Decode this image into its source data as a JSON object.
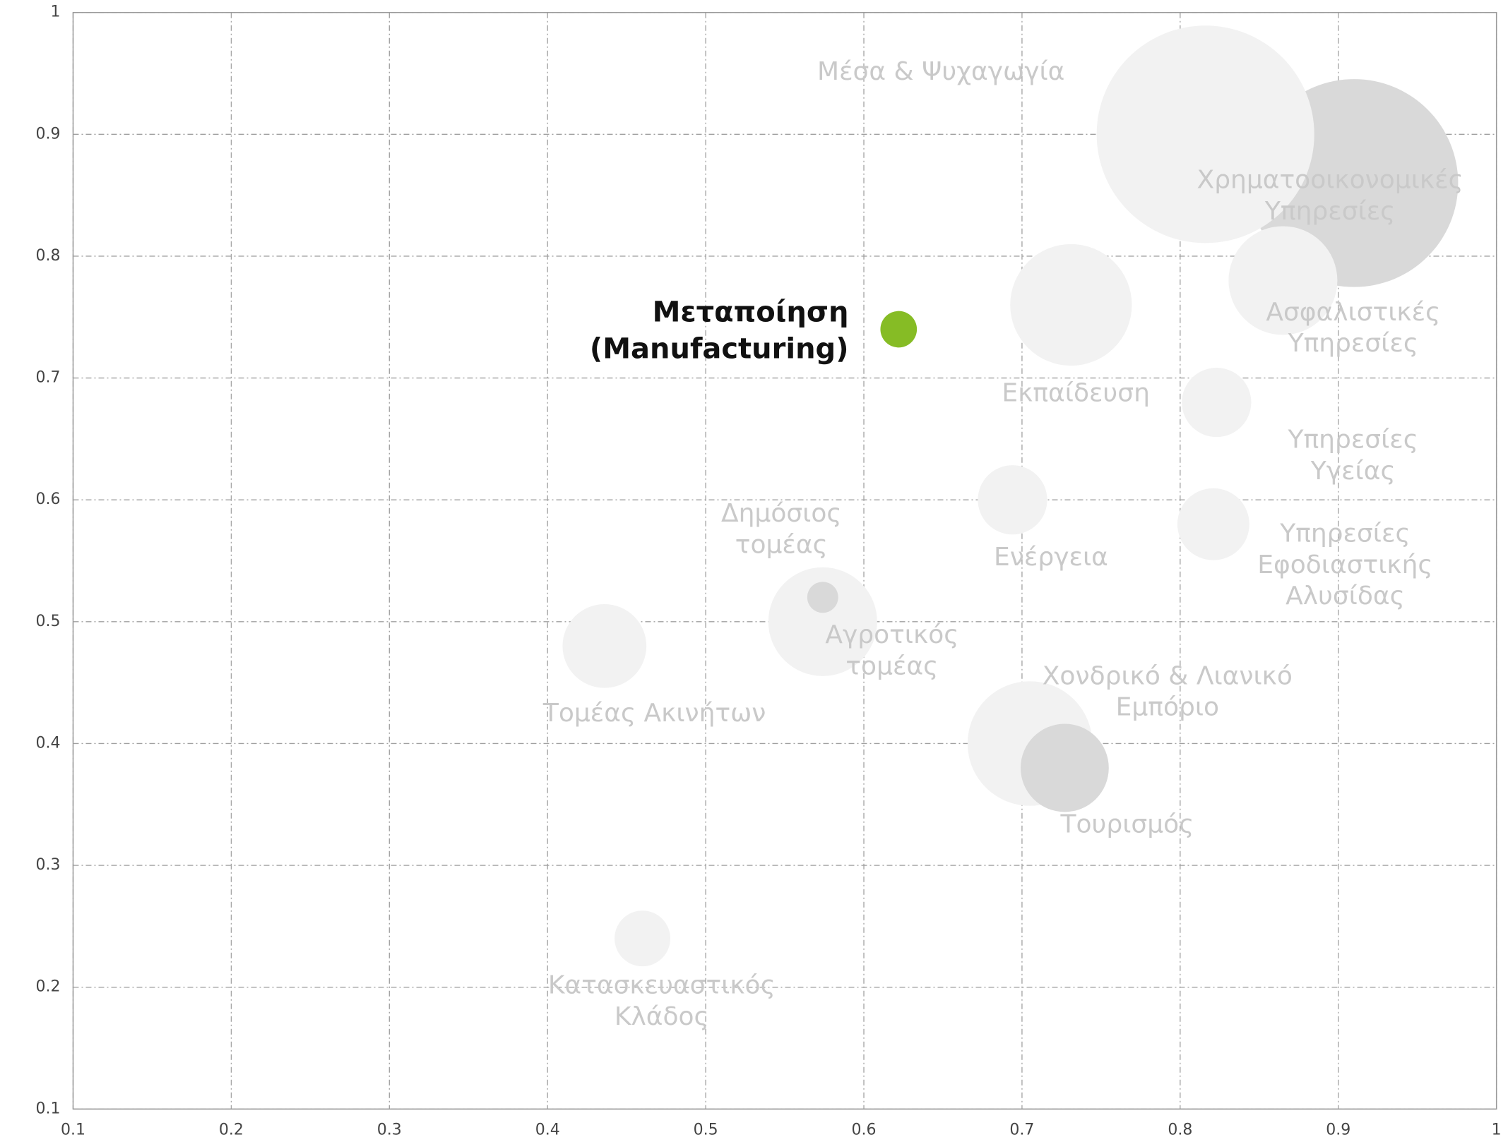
{
  "chart_data": {
    "type": "scatter",
    "xlim": [
      0.1,
      1
    ],
    "ylim": [
      0.1,
      1
    ],
    "xticks": [
      0.1,
      0.2,
      0.3,
      0.4,
      0.5,
      0.6,
      0.7,
      0.8,
      0.9,
      1
    ],
    "yticks": [
      0.1,
      0.2,
      0.3,
      0.4,
      0.5,
      0.6,
      0.7,
      0.8,
      0.9,
      1
    ],
    "grid": true,
    "points": [
      {
        "label": [
          "Χρηματοοικονομικές",
          "Υπηρεσίες"
        ],
        "x": 0.91,
        "y": 0.86,
        "size": 117,
        "color": "#d9d9d9"
      },
      {
        "label": [
          "Μέσα & Ψυχαγωγία"
        ],
        "x": 0.816,
        "y": 0.9,
        "size": 128,
        "color": "#f2f2f2"
      },
      {
        "label": [
          "Ασφαλιστικές",
          "Υπηρεσίες"
        ],
        "x": 0.865,
        "y": 0.78,
        "size": 32,
        "color": "#f2f2f2"
      },
      {
        "label": [
          "Εκπαίδευση"
        ],
        "x": 0.731,
        "y": 0.76,
        "size": 40,
        "color": "#f2f2f2"
      },
      {
        "label": [
          "Μεταποίηση",
          "(Manufacturing)"
        ],
        "x": 0.622,
        "y": 0.74,
        "size": 3.6,
        "color": "#86bc25"
      },
      {
        "label": [
          "Υπηρεσίες",
          "Υγείας"
        ],
        "x": 0.823,
        "y": 0.68,
        "size": 13,
        "color": "#f2f2f2"
      },
      {
        "label": [
          "Ενέργεια"
        ],
        "x": 0.694,
        "y": 0.6,
        "size": 13,
        "color": "#f2f2f2"
      },
      {
        "label": [
          "Υπηρεσίες",
          "Εφοδιαστικής",
          "Αλυσίδας"
        ],
        "x": 0.821,
        "y": 0.58,
        "size": 14,
        "color": "#f2f2f2"
      },
      {
        "label": [
          "Αγροτικός",
          "τομέας"
        ],
        "x": 0.574,
        "y": 0.5,
        "size": 32,
        "color": "#f2f2f2"
      },
      {
        "label": [
          "Δημόσιος",
          "τομέας"
        ],
        "x": 0.574,
        "y": 0.52,
        "size": 2.6,
        "color": "#d9d9d9"
      },
      {
        "label": [
          "Τομέας Ακινήτων"
        ],
        "x": 0.436,
        "y": 0.48,
        "size": 19,
        "color": "#f2f2f2"
      },
      {
        "label": [
          "Χονδρικό & Λιανικό",
          "Εμπόριο"
        ],
        "x": 0.705,
        "y": 0.4,
        "size": 42,
        "color": "#f2f2f2"
      },
      {
        "label": [
          "Τουρισμός"
        ],
        "x": 0.727,
        "y": 0.38,
        "size": 21,
        "color": "#d9d9d9"
      },
      {
        "label": [
          "Κατασκευαστικός",
          "Κλάδος"
        ],
        "x": 0.46,
        "y": 0.24,
        "size": 8.4,
        "color": "#f2f2f2"
      }
    ]
  }
}
